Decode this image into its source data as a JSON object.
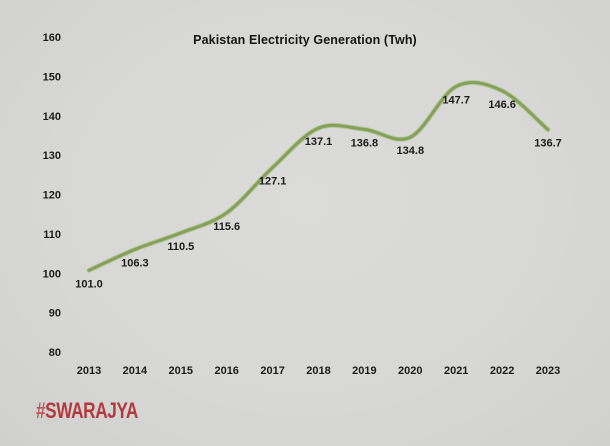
{
  "title": "Pakistan Electricity Generation (Twh)",
  "watermark": {
    "hash": "#",
    "name": "SWARAJYA",
    "color": "#b23a3e"
  },
  "chart_data": {
    "type": "line",
    "title": "Pakistan Electricity Generation (Twh)",
    "x": [
      2013,
      2014,
      2015,
      2016,
      2017,
      2018,
      2019,
      2020,
      2021,
      2022,
      2023
    ],
    "values": [
      101.0,
      106.3,
      110.5,
      115.6,
      127.1,
      137.1,
      136.8,
      134.8,
      147.7,
      146.6,
      136.7
    ],
    "data_labels": [
      "101.0",
      "106.3",
      "110.5",
      "115.6",
      "127.1",
      "137.1",
      "136.8",
      "134.8",
      "147.7",
      "146.6",
      "136.7"
    ],
    "yticks": [
      80,
      90,
      100,
      110,
      120,
      130,
      140,
      150,
      160
    ],
    "ylim": [
      80,
      160
    ],
    "xlabel": "",
    "ylabel": "",
    "grid": false,
    "axis_lines": false,
    "legend": "none",
    "smooth": true,
    "line_color": "#84a159",
    "line_halo_color": "#b9c6a0",
    "text_color": "#1c1c1c"
  }
}
